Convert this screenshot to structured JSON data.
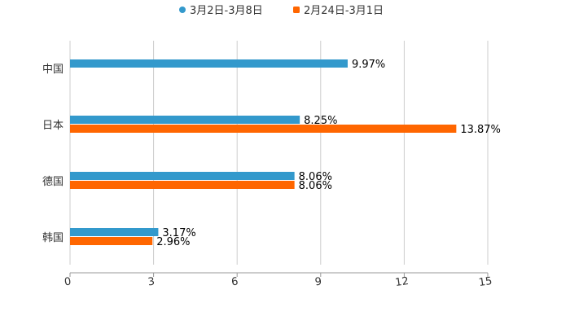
{
  "chart_data": {
    "type": "bar",
    "orientation": "horizontal",
    "categories": [
      "中国",
      "日本",
      "德国",
      "韩国"
    ],
    "series": [
      {
        "name": "3月2日-3月8日",
        "color": "#3399cc",
        "values": [
          9.97,
          8.25,
          8.06,
          3.17
        ],
        "labels": [
          "9.97%",
          "8.25%",
          "8.06%",
          "3.17%"
        ]
      },
      {
        "name": "2月24日-3月1日",
        "color": "#ff6600",
        "values": [
          null,
          13.87,
          8.06,
          2.96
        ],
        "labels": [
          null,
          "13.87%",
          "8.06%",
          "2.96%"
        ]
      }
    ],
    "xlim": [
      0,
      15
    ],
    "xticks": [
      "0",
      "3",
      "6",
      "9",
      "12",
      "15"
    ],
    "grid": true,
    "legend": "top-center"
  }
}
